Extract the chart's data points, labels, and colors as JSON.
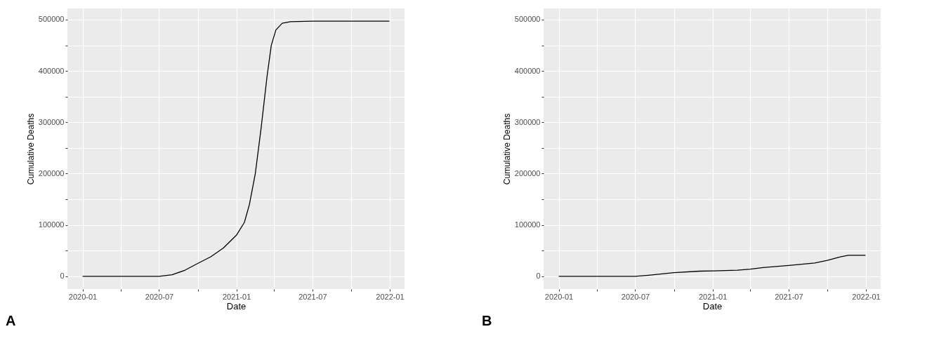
{
  "chart_data": [
    {
      "type": "line",
      "xlabel": "Date",
      "ylabel": "Cumulative Deaths",
      "annotations": [
        "A"
      ],
      "x": [
        "2020-01-01",
        "2020-04-01",
        "2020-07-01",
        "2020-08-01",
        "2020-09-01",
        "2020-10-01",
        "2020-11-01",
        "2020-12-01",
        "2021-01-01",
        "2021-01-20",
        "2021-02-01",
        "2021-02-15",
        "2021-03-01",
        "2021-03-15",
        "2021-03-25",
        "2021-04-05",
        "2021-04-20",
        "2021-05-10",
        "2021-07-01",
        "2021-12-31"
      ],
      "series": [
        {
          "color": "#000000",
          "values": [
            0,
            0,
            0,
            3000,
            12000,
            25000,
            38000,
            55000,
            80000,
            105000,
            140000,
            200000,
            290000,
            390000,
            450000,
            480000,
            493000,
            496000,
            497000,
            497000
          ]
        }
      ],
      "xlim": [
        "2019-11-26",
        "2022-02-05"
      ],
      "xticks": [
        {
          "value": "2020-01-01",
          "label": "2020-01"
        },
        {
          "value": "2020-04-01",
          "label": null
        },
        {
          "value": "2020-07-01",
          "label": "2020-07"
        },
        {
          "value": "2020-10-01",
          "label": null
        },
        {
          "value": "2021-01-01",
          "label": "2021-01"
        },
        {
          "value": "2021-04-01",
          "label": null
        },
        {
          "value": "2021-07-01",
          "label": "2021-07"
        },
        {
          "value": "2021-10-01",
          "label": null
        },
        {
          "value": "2022-01-01",
          "label": "2022-01"
        }
      ],
      "ylim": [
        -24850,
        521850
      ],
      "yticks": [
        0,
        {
          "value": 50000,
          "label": null
        },
        100000,
        {
          "value": 150000,
          "label": null
        },
        200000,
        {
          "value": 250000,
          "label": null
        },
        300000,
        {
          "value": 350000,
          "label": null
        },
        400000,
        {
          "value": 450000,
          "label": null
        },
        500000
      ],
      "grid": true,
      "legend": false,
      "marker": "none",
      "line_style": "solid"
    },
    {
      "type": "line",
      "xlabel": "Date",
      "ylabel": "Cumulative Deaths",
      "annotations": [
        "B"
      ],
      "x": [
        "2020-01-01",
        "2020-04-01",
        "2020-07-01",
        "2020-08-01",
        "2020-10-01",
        "2020-12-01",
        "2021-01-01",
        "2021-03-01",
        "2021-04-01",
        "2021-05-01",
        "2021-07-01",
        "2021-09-01",
        "2021-10-01",
        "2021-11-01",
        "2021-11-20",
        "2021-12-31"
      ],
      "series": [
        {
          "color": "#000000",
          "values": [
            0,
            0,
            0,
            2000,
            7000,
            10000,
            10500,
            12000,
            14000,
            17000,
            21000,
            26000,
            31000,
            38000,
            41000,
            41000
          ]
        }
      ],
      "xlim": [
        "2019-11-26",
        "2022-02-05"
      ],
      "xticks": [
        {
          "value": "2020-01-01",
          "label": "2020-01"
        },
        {
          "value": "2020-04-01",
          "label": null
        },
        {
          "value": "2020-07-01",
          "label": "2020-07"
        },
        {
          "value": "2020-10-01",
          "label": null
        },
        {
          "value": "2021-01-01",
          "label": "2021-01"
        },
        {
          "value": "2021-04-01",
          "label": null
        },
        {
          "value": "2021-07-01",
          "label": "2021-07"
        },
        {
          "value": "2021-10-01",
          "label": null
        },
        {
          "value": "2022-01-01",
          "label": "2022-01"
        }
      ],
      "ylim": [
        -24850,
        521850
      ],
      "yticks": [
        0,
        {
          "value": 50000,
          "label": null
        },
        100000,
        {
          "value": 150000,
          "label": null
        },
        200000,
        {
          "value": 250000,
          "label": null
        },
        300000,
        {
          "value": 350000,
          "label": null
        },
        400000,
        {
          "value": 450000,
          "label": null
        },
        500000
      ],
      "grid": true,
      "legend": false,
      "marker": "none",
      "line_style": "solid"
    }
  ]
}
